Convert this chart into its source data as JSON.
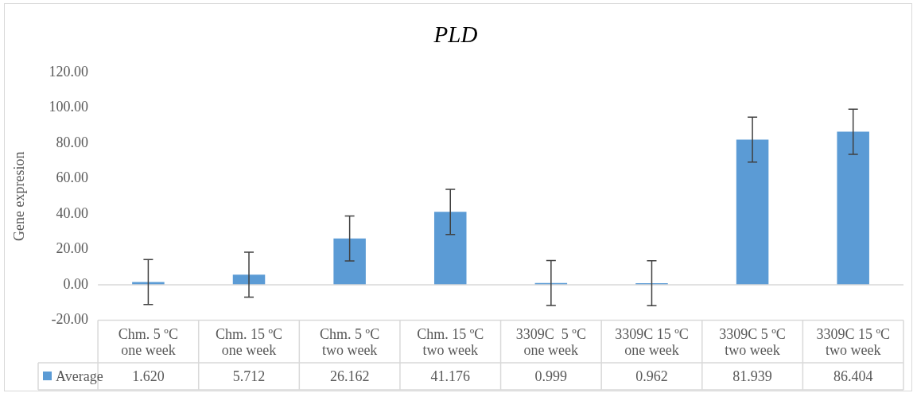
{
  "chart_data": {
    "type": "bar",
    "title": "PLD",
    "ylabel": "Gene expresion",
    "categories": [
      "Chm. 5 ºC one week",
      "Chm. 15 ºC one week",
      "Chm. 5 ºC two week",
      "Chm. 15 ºC two week",
      "3309C  5 ºC one week",
      "3309C 15 ºC one week",
      "3309C 5 ºC two week",
      "3309C 15 ºC two week"
    ],
    "series": [
      {
        "name": "Average",
        "color": "#5b9bd5",
        "values": [
          1.62,
          5.712,
          26.162,
          41.176,
          0.999,
          0.962,
          81.939,
          86.404
        ],
        "value_labels": [
          "1.620",
          "5.712",
          "26.162",
          "41.176",
          "0.999",
          "0.962",
          "81.939",
          "86.404"
        ],
        "errors": [
          12.7,
          12.7,
          12.7,
          12.7,
          12.7,
          12.7,
          12.7,
          12.7
        ]
      }
    ],
    "ylim": [
      -20,
      120
    ],
    "yticks": [
      {
        "value": -20,
        "label": "-20.00"
      },
      {
        "value": 0,
        "label": "0.00"
      },
      {
        "value": 20,
        "label": "20.00"
      },
      {
        "value": 40,
        "label": "40.00"
      },
      {
        "value": 60,
        "label": "60.00"
      },
      {
        "value": 80,
        "label": "80.00"
      },
      {
        "value": 100,
        "label": "100.00"
      },
      {
        "value": 120,
        "label": "120.00"
      }
    ],
    "ref_lines": [
      {
        "axis": "y",
        "value": 0,
        "color": "#d9d9d9"
      }
    ],
    "grid": false,
    "legend": "bottom"
  }
}
